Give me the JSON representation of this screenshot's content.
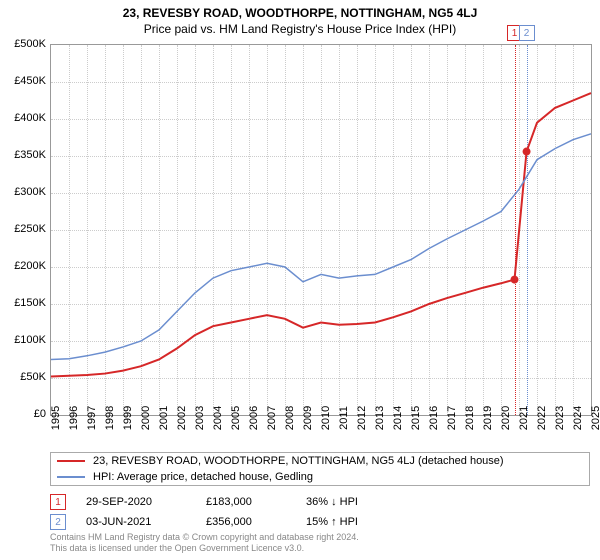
{
  "title": "23, REVESBY ROAD, WOODTHORPE, NOTTINGHAM, NG5 4LJ",
  "subtitle": "Price paid vs. HM Land Registry's House Price Index (HPI)",
  "chart": {
    "type": "line",
    "background_color": "#ffffff",
    "grid_color": "#cccccc",
    "border_color": "#999999",
    "x": {
      "min": 1995,
      "max": 2025,
      "step": 1
    },
    "y": {
      "min": 0,
      "max": 500000,
      "step": 50000,
      "prefix": "£",
      "format": "K"
    },
    "markers": [
      {
        "id": "1",
        "x": 2020.75,
        "color": "#d62728"
      },
      {
        "id": "2",
        "x": 2021.42,
        "color": "#6b8ecf"
      }
    ],
    "badge_y_top": -20,
    "series": [
      {
        "name": "23, REVESBY ROAD, WOODTHORPE, NOTTINGHAM, NG5 4LJ (detached house)",
        "color": "#d62728",
        "width": 2,
        "data": [
          [
            1995,
            52000
          ],
          [
            1996,
            53000
          ],
          [
            1997,
            54000
          ],
          [
            1998,
            56000
          ],
          [
            1999,
            60000
          ],
          [
            2000,
            66000
          ],
          [
            2001,
            75000
          ],
          [
            2002,
            90000
          ],
          [
            2003,
            108000
          ],
          [
            2004,
            120000
          ],
          [
            2005,
            125000
          ],
          [
            2006,
            130000
          ],
          [
            2007,
            135000
          ],
          [
            2008,
            130000
          ],
          [
            2009,
            118000
          ],
          [
            2010,
            125000
          ],
          [
            2011,
            122000
          ],
          [
            2012,
            123000
          ],
          [
            2013,
            125000
          ],
          [
            2014,
            132000
          ],
          [
            2015,
            140000
          ],
          [
            2016,
            150000
          ],
          [
            2017,
            158000
          ],
          [
            2018,
            165000
          ],
          [
            2019,
            172000
          ],
          [
            2020,
            178000
          ],
          [
            2020.75,
            183000
          ],
          [
            2021.42,
            356000
          ],
          [
            2022,
            395000
          ],
          [
            2023,
            415000
          ],
          [
            2024,
            425000
          ],
          [
            2025,
            435000
          ]
        ],
        "dots": [
          {
            "x": 2020.75,
            "y": 183000
          },
          {
            "x": 2021.42,
            "y": 356000
          }
        ]
      },
      {
        "name": "HPI: Average price, detached house, Gedling",
        "color": "#6b8ecf",
        "width": 1.5,
        "data": [
          [
            1995,
            75000
          ],
          [
            1996,
            76000
          ],
          [
            1997,
            80000
          ],
          [
            1998,
            85000
          ],
          [
            1999,
            92000
          ],
          [
            2000,
            100000
          ],
          [
            2001,
            115000
          ],
          [
            2002,
            140000
          ],
          [
            2003,
            165000
          ],
          [
            2004,
            185000
          ],
          [
            2005,
            195000
          ],
          [
            2006,
            200000
          ],
          [
            2007,
            205000
          ],
          [
            2008,
            200000
          ],
          [
            2009,
            180000
          ],
          [
            2010,
            190000
          ],
          [
            2011,
            185000
          ],
          [
            2012,
            188000
          ],
          [
            2013,
            190000
          ],
          [
            2014,
            200000
          ],
          [
            2015,
            210000
          ],
          [
            2016,
            225000
          ],
          [
            2017,
            238000
          ],
          [
            2018,
            250000
          ],
          [
            2019,
            262000
          ],
          [
            2020,
            275000
          ],
          [
            2021,
            305000
          ],
          [
            2022,
            345000
          ],
          [
            2023,
            360000
          ],
          [
            2024,
            372000
          ],
          [
            2025,
            380000
          ]
        ]
      }
    ]
  },
  "legend": {
    "items": [
      {
        "color": "#d62728",
        "label": "23, REVESBY ROAD, WOODTHORPE, NOTTINGHAM, NG5 4LJ (detached house)"
      },
      {
        "color": "#6b8ecf",
        "label": "HPI: Average price, detached house, Gedling"
      }
    ]
  },
  "marker_rows": [
    {
      "id": "1",
      "color": "#d62728",
      "date": "29-SEP-2020",
      "price": "£183,000",
      "delta": "36% ↓ HPI"
    },
    {
      "id": "2",
      "color": "#6b8ecf",
      "date": "03-JUN-2021",
      "price": "£356,000",
      "delta": "15% ↑ HPI"
    }
  ],
  "footer": {
    "line1": "Contains HM Land Registry data © Crown copyright and database right 2024.",
    "line2": "This data is licensed under the Open Government Licence v3.0."
  },
  "fonts": {
    "title_size": 12,
    "label_size": 11,
    "footer_size": 9
  }
}
